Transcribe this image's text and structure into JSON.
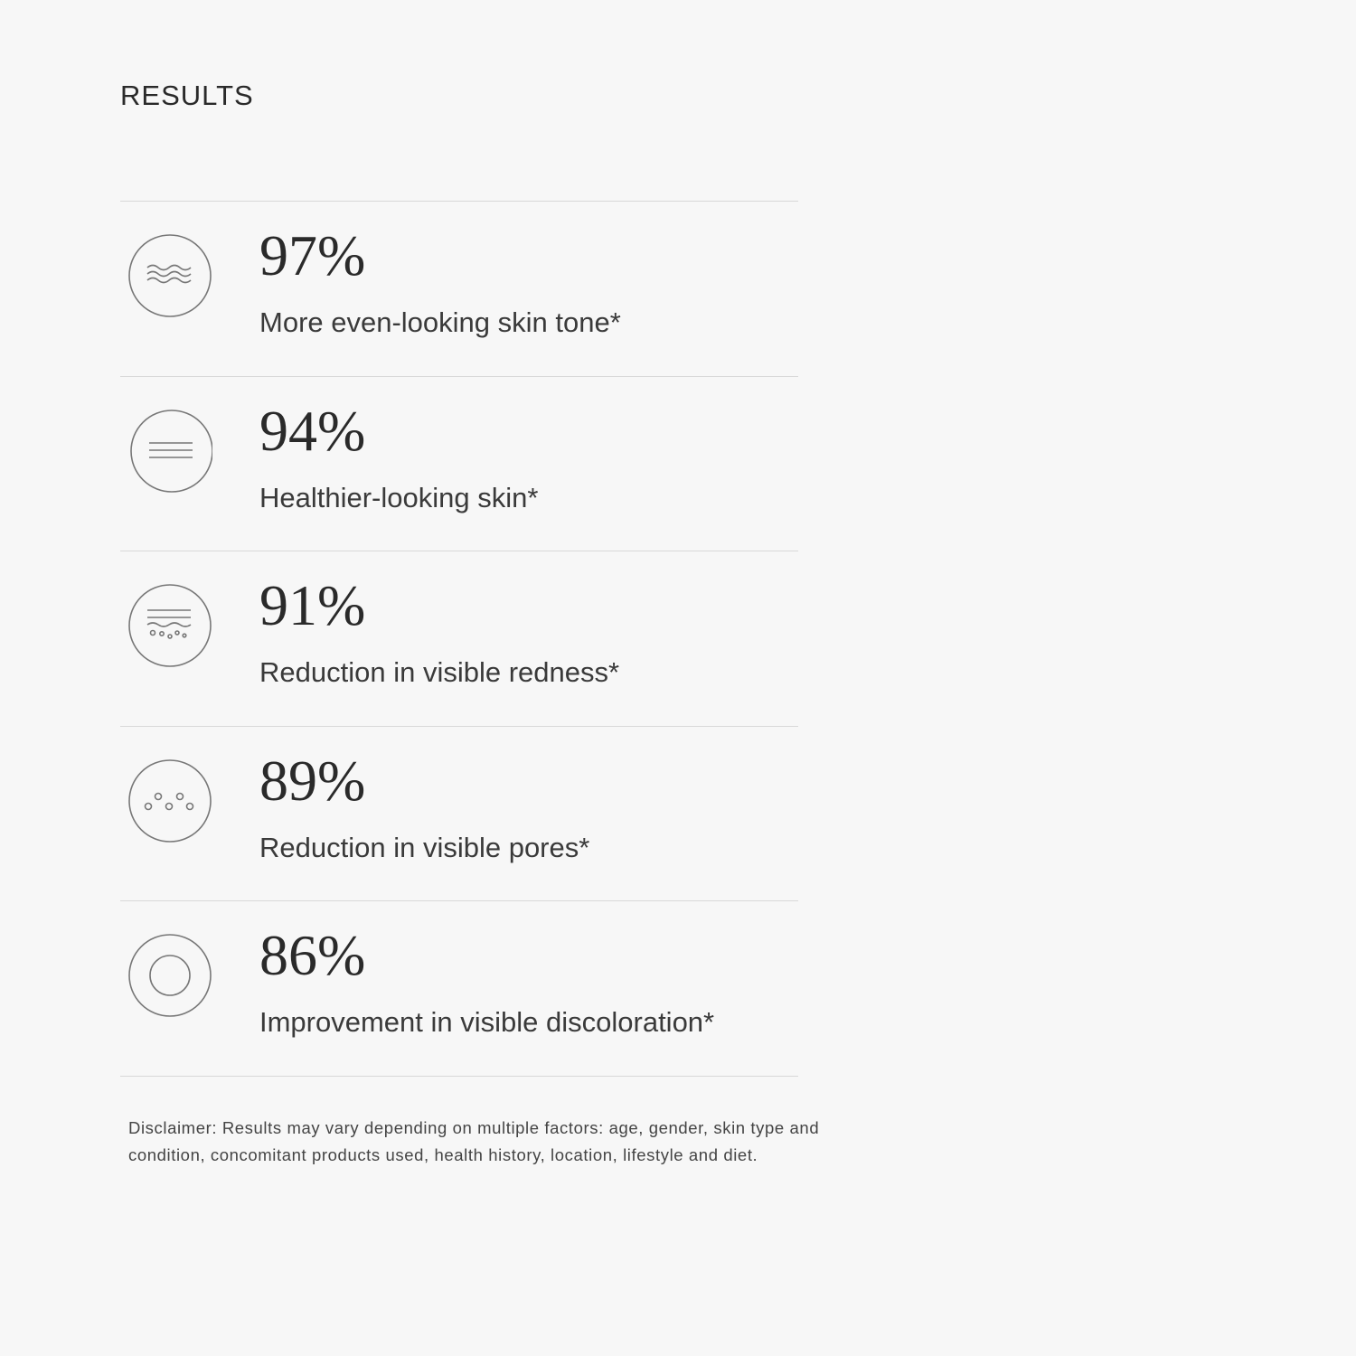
{
  "title": "RESULTS",
  "items": [
    {
      "value": "97%",
      "label": "More even-looking skin tone*",
      "icon": "waves-icon"
    },
    {
      "value": "94%",
      "label": "Healthier-looking skin*",
      "icon": "lines-icon"
    },
    {
      "value": "91%",
      "label": "Reduction in visible redness*",
      "icon": "skin-layers-icon"
    },
    {
      "value": "89%",
      "label": "Reduction in visible pores*",
      "icon": "pores-icon"
    },
    {
      "value": "86%",
      "label": "Improvement in visible discoloration*",
      "icon": "ring-icon"
    }
  ],
  "disclaimer": "Disclaimer: Results may vary depending on multiple factors: age, gender, skin type and condition, concomitant products used, health history, location, lifestyle and diet."
}
